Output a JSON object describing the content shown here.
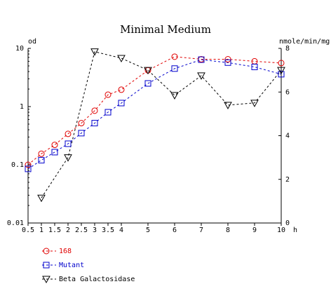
{
  "chart_data": {
    "type": "line",
    "title": "Minimal Medium",
    "xlabel": "h",
    "ylabel_left": "od",
    "ylabel_right": "nmole/min/mg",
    "x_ticks": [
      "0.5",
      "1",
      "1.5",
      "2",
      "2.5",
      "3",
      "3.5",
      "4",
      "5",
      "6",
      "7",
      "8",
      "9",
      "10"
    ],
    "y_left": {
      "scale": "log",
      "range": [
        0.01,
        10
      ],
      "ticks": [
        "0.01",
        "0.1",
        "1",
        "10"
      ]
    },
    "y_right": {
      "scale": "linear",
      "range": [
        0,
        8
      ],
      "ticks": [
        "0",
        "2",
        "4",
        "6",
        "8"
      ]
    },
    "grid": false,
    "series": [
      {
        "name": "168",
        "axis": "left",
        "marker": "circle",
        "color": "#e00000",
        "x": [
          0.5,
          1,
          1.5,
          2,
          2.5,
          3,
          3.5,
          4,
          5,
          6,
          7,
          8,
          9,
          10
        ],
        "y": [
          0.1,
          0.155,
          0.22,
          0.34,
          0.52,
          0.85,
          1.6,
          1.95,
          4.2,
          7.2,
          6.5,
          6.5,
          6.0,
          5.6
        ]
      },
      {
        "name": "Mutant",
        "axis": "left",
        "marker": "square",
        "color": "#0000cc",
        "x": [
          0.5,
          1,
          1.5,
          2,
          2.5,
          3,
          3.5,
          4,
          5,
          6,
          7,
          8,
          9,
          10
        ],
        "y": [
          0.085,
          0.12,
          0.165,
          0.23,
          0.35,
          0.52,
          0.8,
          1.15,
          2.5,
          4.5,
          6.4,
          5.7,
          4.8,
          3.6
        ]
      },
      {
        "name": "Beta Galactosidase",
        "axis": "right",
        "marker": "triangle-down",
        "color": "#000000",
        "x": [
          1,
          2,
          3,
          4,
          5,
          6,
          7,
          8,
          9,
          10
        ],
        "y": [
          1.15,
          3.0,
          7.85,
          7.55,
          7.0,
          5.85,
          6.75,
          5.4,
          5.5,
          7.0
        ]
      }
    ],
    "legend_position": "bottom-left"
  }
}
